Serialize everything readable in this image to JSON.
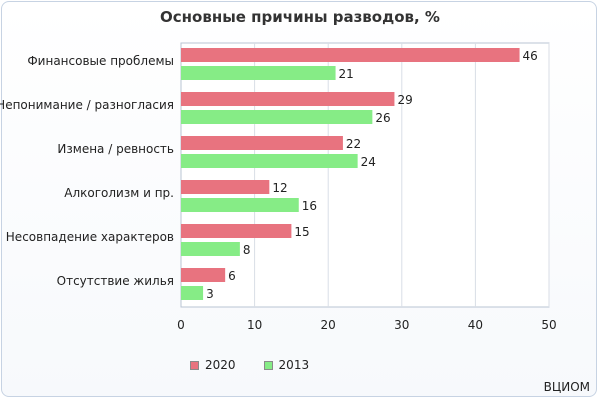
{
  "chart_data": {
    "type": "bar",
    "orientation": "horizontal",
    "title": "Основные причины разводов, %",
    "categories": [
      "Финансовые проблемы",
      "Непонимание / разногласия",
      "Измена / ревность",
      "Алкоголизм и пр.",
      "Несовпадение характеров",
      "Отсутствие жилья"
    ],
    "series": [
      {
        "name": "2020",
        "color": "#e8737f",
        "values": [
          46,
          29,
          22,
          12,
          15,
          6
        ]
      },
      {
        "name": "2013",
        "color": "#86ec86",
        "values": [
          21,
          26,
          24,
          16,
          8,
          3
        ]
      }
    ],
    "xlim": [
      0,
      50
    ],
    "xticks": [
      0,
      10,
      20,
      30,
      40,
      50
    ],
    "grid": "vertical",
    "legend_position": "bottom",
    "data_labels": true
  },
  "source": "ВЦИОМ"
}
